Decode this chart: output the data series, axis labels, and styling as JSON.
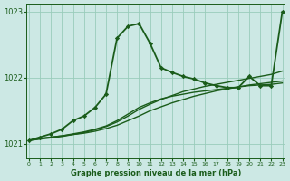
{
  "background_color": "#cce8e4",
  "grid_color": "#99ccbb",
  "line_color": "#1a5c1a",
  "title": "Graphe pression niveau de la mer (hPa)",
  "xlim": [
    -0.2,
    23.2
  ],
  "ylim": [
    1020.78,
    1023.12
  ],
  "yticks": [
    1021,
    1022,
    1023
  ],
  "xtick_labels": [
    "0",
    "1",
    "2",
    "3",
    "4",
    "5",
    "6",
    "7",
    "8",
    "9",
    "10",
    "11",
    "12",
    "13",
    "14",
    "15",
    "16",
    "17",
    "18",
    "19",
    "20",
    "21",
    "22",
    "23"
  ],
  "series": [
    {
      "x": [
        0,
        1,
        2,
        3,
        4,
        5,
        6,
        7,
        8,
        9,
        10,
        11,
        12,
        13,
        14,
        15,
        16,
        17,
        18,
        19,
        20,
        21,
        22,
        23
      ],
      "y": [
        1021.05,
        1021.08,
        1021.1,
        1021.12,
        1021.15,
        1021.18,
        1021.22,
        1021.27,
        1021.35,
        1021.45,
        1021.55,
        1021.62,
        1021.68,
        1021.72,
        1021.75,
        1021.78,
        1021.8,
        1021.82,
        1021.84,
        1021.86,
        1021.88,
        1021.89,
        1021.9,
        1021.92
      ],
      "marker": false,
      "linewidth": 1.0
    },
    {
      "x": [
        0,
        1,
        2,
        3,
        4,
        5,
        6,
        7,
        8,
        9,
        10,
        11,
        12,
        13,
        14,
        15,
        16,
        17,
        18,
        19,
        20,
        21,
        22,
        23
      ],
      "y": [
        1021.05,
        1021.08,
        1021.1,
        1021.12,
        1021.14,
        1021.16,
        1021.19,
        1021.23,
        1021.28,
        1021.35,
        1021.42,
        1021.5,
        1021.56,
        1021.62,
        1021.67,
        1021.72,
        1021.76,
        1021.8,
        1021.83,
        1021.86,
        1021.89,
        1021.91,
        1021.93,
        1021.95
      ],
      "marker": false,
      "linewidth": 1.0
    },
    {
      "x": [
        0,
        1,
        2,
        3,
        4,
        5,
        6,
        7,
        8,
        9,
        10,
        11,
        12,
        13,
        14,
        15,
        16,
        17,
        18,
        19,
        20,
        21,
        22,
        23
      ],
      "y": [
        1021.05,
        1021.07,
        1021.09,
        1021.11,
        1021.14,
        1021.17,
        1021.21,
        1021.26,
        1021.33,
        1021.42,
        1021.52,
        1021.6,
        1021.67,
        1021.73,
        1021.79,
        1021.83,
        1021.87,
        1021.9,
        1021.93,
        1021.96,
        1021.99,
        1022.02,
        1022.05,
        1022.1
      ],
      "marker": false,
      "linewidth": 1.0
    },
    {
      "x": [
        0,
        1,
        2,
        3,
        4,
        5,
        6,
        7,
        8,
        9,
        10,
        11,
        12,
        13,
        14,
        15,
        16,
        17,
        18,
        19,
        20,
        21,
        22,
        23
      ],
      "y": [
        1021.05,
        1021.1,
        1021.15,
        1021.22,
        1021.35,
        1021.42,
        1021.55,
        1021.75,
        1022.6,
        1022.78,
        1022.82,
        1022.52,
        1022.15,
        1022.08,
        1022.02,
        1021.98,
        1021.92,
        1021.88,
        1021.85,
        1021.85,
        1022.02,
        1021.88,
        1021.88,
        1023.0
      ],
      "marker": true,
      "linewidth": 1.3
    }
  ]
}
